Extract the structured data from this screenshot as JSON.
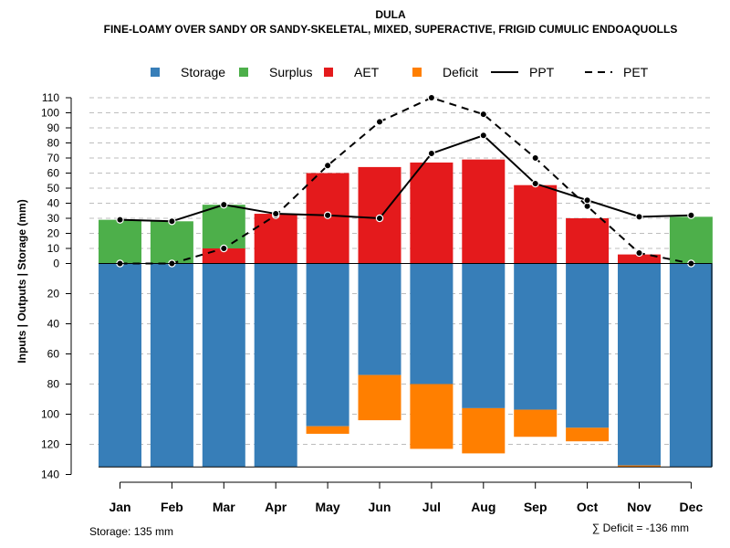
{
  "chart_data": {
    "type": "bar",
    "title": "DULA",
    "subtitle": "FINE-LOAMY OVER SANDY OR SANDY-SKELETAL, MIXED, SUPERACTIVE, FRIGID CUMULIC ENDOAQUOLLS",
    "ylabel": "Inputs | Outputs | Storage     (mm)",
    "categories": [
      "Jan",
      "Feb",
      "Mar",
      "Apr",
      "May",
      "Jun",
      "Jul",
      "Aug",
      "Sep",
      "Oct",
      "Nov",
      "Dec"
    ],
    "upper_ticks": [
      0,
      10,
      20,
      30,
      40,
      50,
      60,
      70,
      80,
      90,
      100,
      110
    ],
    "lower_ticks": [
      20,
      40,
      60,
      80,
      100,
      120,
      140
    ],
    "ylim_upper": [
      0,
      110
    ],
    "ylim_lower": [
      0,
      140
    ],
    "legend": [
      {
        "key": "storage",
        "label": "Storage",
        "kind": "box",
        "color": "#377EB8"
      },
      {
        "key": "surplus",
        "label": "Surplus",
        "kind": "box",
        "color": "#4DAF4A"
      },
      {
        "key": "aet",
        "label": "AET",
        "kind": "box",
        "color": "#E41A1C"
      },
      {
        "key": "deficit",
        "label": "Deficit",
        "kind": "box",
        "color": "#FF7F00"
      },
      {
        "key": "ppt",
        "label": "PPT",
        "kind": "solid",
        "color": "#000000"
      },
      {
        "key": "pet",
        "label": "PET",
        "kind": "dashed",
        "color": "#000000"
      }
    ],
    "series": [
      {
        "name": "AET",
        "key": "aet",
        "color": "#E41A1C",
        "values": [
          0,
          0,
          10,
          33,
          60,
          64,
          67,
          69,
          52,
          30,
          6,
          0
        ]
      },
      {
        "name": "Surplus",
        "key": "surplus",
        "color": "#4DAF4A",
        "values": [
          29,
          28,
          29,
          0,
          0,
          0,
          0,
          0,
          0,
          0,
          0,
          31
        ]
      },
      {
        "name": "Storage",
        "key": "storage",
        "color": "#377EB8",
        "values": [
          135,
          135,
          135,
          135,
          108,
          74,
          80,
          96,
          97,
          109,
          134,
          135
        ]
      },
      {
        "name": "Deficit",
        "key": "deficit",
        "color": "#FF7F00",
        "values": [
          0,
          0,
          0,
          0,
          5,
          30,
          43,
          30,
          18,
          9,
          1,
          0
        ]
      },
      {
        "name": "PPT",
        "key": "ppt",
        "color": "#000000",
        "values": [
          29,
          28,
          39,
          33,
          32,
          30,
          73,
          85,
          53,
          42,
          31,
          32
        ]
      },
      {
        "name": "PET",
        "key": "pet",
        "color": "#000000",
        "values": [
          0,
          0,
          10,
          32,
          65,
          94,
          110,
          99,
          70,
          38,
          7,
          0
        ]
      }
    ],
    "storage_capacity": 135,
    "storage_label": "Storage: 135 mm",
    "deficit_label": "∑ Deficit = -136 mm"
  }
}
